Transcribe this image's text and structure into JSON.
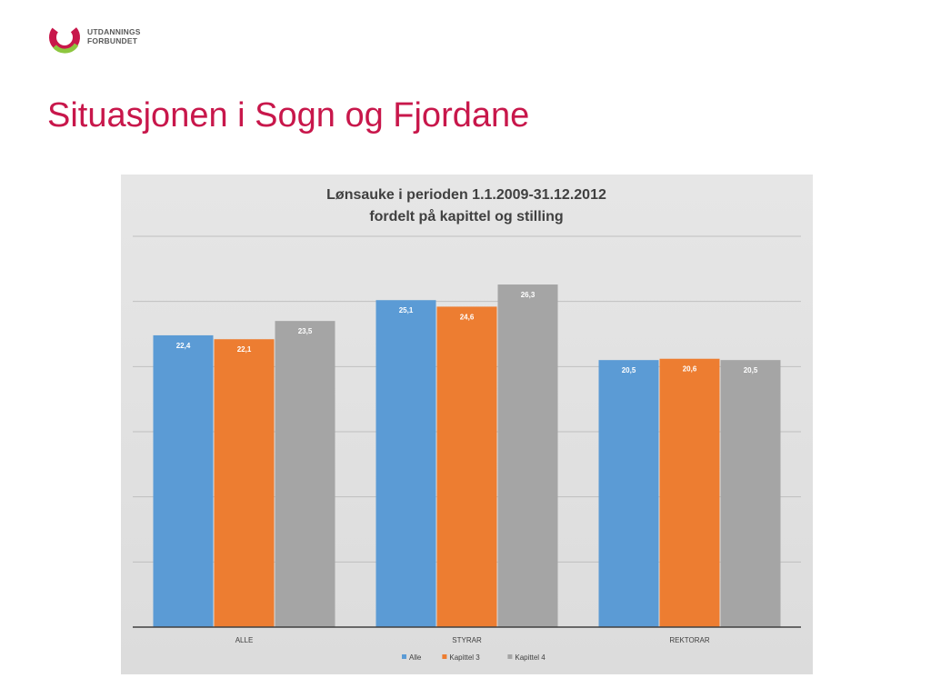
{
  "logo": {
    "line1": "UTDANNINGS",
    "line2": "FORBUNDET",
    "colors": [
      "#c8174b",
      "#8dc63f"
    ]
  },
  "slide_title": "Situasjonen i Sogn og Fjordane",
  "chart_data": {
    "type": "bar",
    "title": "Lønsauke i perioden 1.1.2009-31.12.2012",
    "subtitle": "fordelt på kapittel og stilling",
    "categories": [
      "ALLE",
      "STYRAR",
      "REKTORAR"
    ],
    "series": [
      {
        "name": "Alle",
        "values": [
          22.4,
          25.1,
          20.5
        ],
        "labels": [
          "22,4",
          "25,1",
          "20,5"
        ],
        "color": "#5b9bd5"
      },
      {
        "name": "Kapittel 3",
        "values": [
          22.1,
          24.6,
          20.6
        ],
        "labels": [
          "22,1",
          "24,6",
          "20,6"
        ],
        "color": "#ed7d31"
      },
      {
        "name": "Kapittel 4",
        "values": [
          23.5,
          26.3,
          20.5
        ],
        "labels": [
          "23,5",
          "26,3",
          "20,5"
        ],
        "color": "#a5a5a5"
      }
    ],
    "ylim": [
      0,
      30
    ],
    "grid": true,
    "legend": "bottom",
    "background": "#e2e2e2"
  }
}
